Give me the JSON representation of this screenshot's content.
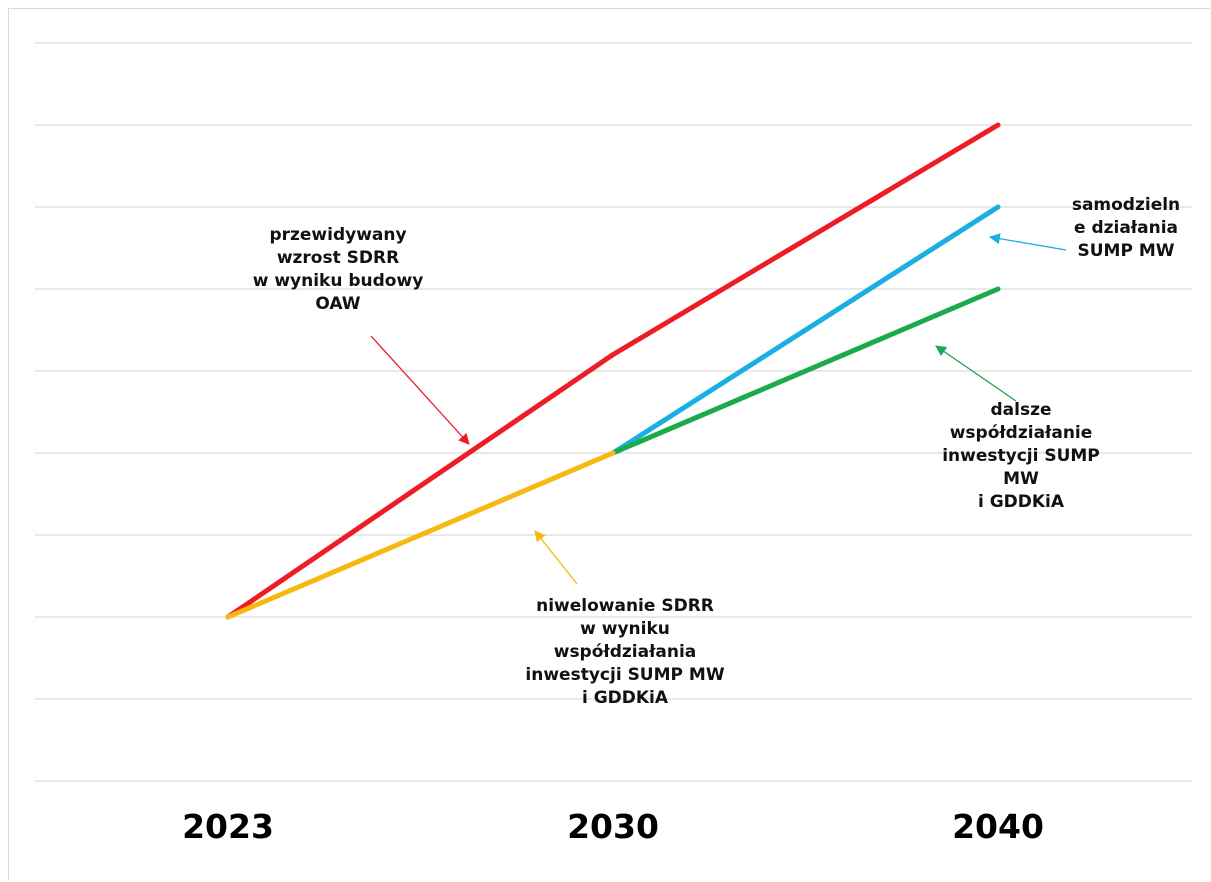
{
  "chart_data": {
    "type": "line",
    "title": "",
    "xlabel": "",
    "ylabel": "",
    "grid": true,
    "categories": [
      "2023",
      "2030",
      "2040"
    ],
    "ylim": [
      0,
      9
    ],
    "series": [
      {
        "key": "red",
        "color": "#ee1c25",
        "values": [
          2,
          5.2,
          8
        ]
      },
      {
        "key": "blue",
        "color": "#1aaee3",
        "values": [
          null,
          4,
          7
        ]
      },
      {
        "key": "green",
        "color": "#1aab4b",
        "values": [
          null,
          4,
          6
        ]
      },
      {
        "key": "yellow",
        "color": "#f5b90f",
        "values": [
          2,
          4,
          null
        ]
      }
    ],
    "annotations": [
      {
        "key": "red",
        "color": "#ee1c25",
        "lines": [
          "przewidywany",
          "wzrost SDRR",
          "w wyniku budowy",
          "OAW"
        ]
      },
      {
        "key": "blue",
        "color": "#1aaee3",
        "lines": [
          "samodzieln",
          "e działania",
          "SUMP MW"
        ]
      },
      {
        "key": "green",
        "color": "#1aab4b",
        "lines": [
          "dalsze",
          "współdziałanie",
          "inwestycji SUMP",
          "MW",
          "i GDDKiA"
        ]
      },
      {
        "key": "yellow",
        "color": "#f5b90f",
        "lines": [
          "niwelowanie SDRR",
          "w wyniku",
          "współdziałania",
          "inwestycji SUMP MW",
          "i GDDKiA"
        ]
      }
    ]
  }
}
